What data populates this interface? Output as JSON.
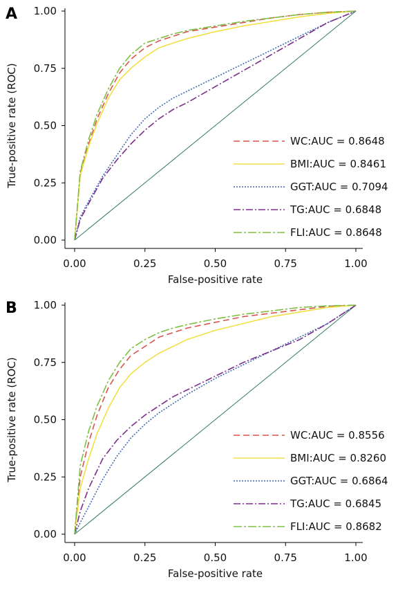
{
  "chart_data": [
    {
      "panel": "A",
      "type": "line",
      "xlabel": "False-positive rate",
      "ylabel": "True-positive rate (ROC)",
      "xlim": [
        0,
        1
      ],
      "ylim": [
        0,
        1
      ],
      "xticks": [
        "0.00",
        "0.25",
        "0.50",
        "0.75",
        "1.00"
      ],
      "yticks": [
        "0.00",
        "0.25",
        "0.50",
        "0.75",
        "1.00"
      ],
      "legend_position": "bottom-right",
      "reference_line": {
        "x": [
          0,
          1
        ],
        "y": [
          0,
          1
        ],
        "color": "#2e7d5b"
      },
      "series": [
        {
          "name": "WC:AUC = 0.8648",
          "color": "#d9534f",
          "dash": "9,5",
          "x": [
            0,
            0.02,
            0.05,
            0.08,
            0.12,
            0.16,
            0.2,
            0.25,
            0.3,
            0.35,
            0.4,
            0.5,
            0.6,
            0.7,
            0.8,
            0.9,
            1.0
          ],
          "y": [
            0,
            0.29,
            0.42,
            0.53,
            0.64,
            0.73,
            0.79,
            0.84,
            0.87,
            0.89,
            0.91,
            0.93,
            0.95,
            0.97,
            0.985,
            0.995,
            1.0
          ]
        },
        {
          "name": "BMI:AUC = 0.8461",
          "color": "#f2df45",
          "dash": "",
          "x": [
            0,
            0.02,
            0.05,
            0.08,
            0.12,
            0.16,
            0.2,
            0.25,
            0.3,
            0.35,
            0.4,
            0.5,
            0.6,
            0.7,
            0.8,
            0.9,
            1.0
          ],
          "y": [
            0,
            0.28,
            0.41,
            0.51,
            0.62,
            0.7,
            0.75,
            0.8,
            0.84,
            0.86,
            0.88,
            0.91,
            0.935,
            0.955,
            0.975,
            0.99,
            1.0
          ]
        },
        {
          "name": "GGT:AUC = 0.7094",
          "color": "#3f67b5",
          "dash": "2,2",
          "x": [
            0,
            0.02,
            0.05,
            0.1,
            0.15,
            0.2,
            0.25,
            0.3,
            0.35,
            0.4,
            0.5,
            0.6,
            0.7,
            0.8,
            0.9,
            1.0
          ],
          "y": [
            0,
            0.1,
            0.17,
            0.28,
            0.37,
            0.46,
            0.53,
            0.58,
            0.62,
            0.65,
            0.71,
            0.77,
            0.83,
            0.89,
            0.95,
            1.0
          ]
        },
        {
          "name": "TG:AUC = 0.6848",
          "color": "#7b2d8b",
          "dash": "10,3,2,3",
          "x": [
            0,
            0.02,
            0.05,
            0.1,
            0.15,
            0.2,
            0.25,
            0.3,
            0.35,
            0.4,
            0.5,
            0.6,
            0.7,
            0.8,
            0.9,
            1.0
          ],
          "y": [
            0,
            0.09,
            0.16,
            0.27,
            0.35,
            0.42,
            0.48,
            0.53,
            0.57,
            0.6,
            0.67,
            0.74,
            0.81,
            0.88,
            0.95,
            1.0
          ]
        },
        {
          "name": "FLI:AUC = 0.8648",
          "color": "#7ebf42",
          "dash": "12,3,3,3",
          "x": [
            0,
            0.02,
            0.05,
            0.08,
            0.12,
            0.16,
            0.2,
            0.25,
            0.3,
            0.35,
            0.4,
            0.5,
            0.6,
            0.7,
            0.8,
            0.9,
            1.0
          ],
          "y": [
            0,
            0.3,
            0.44,
            0.55,
            0.66,
            0.75,
            0.81,
            0.86,
            0.88,
            0.9,
            0.915,
            0.935,
            0.955,
            0.97,
            0.985,
            0.995,
            1.0
          ]
        }
      ]
    },
    {
      "panel": "B",
      "type": "line",
      "xlabel": "False-positive rate",
      "ylabel": "True-positive rate (ROC)",
      "xlim": [
        0,
        1
      ],
      "ylim": [
        0,
        1
      ],
      "xticks": [
        "0.00",
        "0.25",
        "0.50",
        "0.75",
        "1.00"
      ],
      "yticks": [
        "0.00",
        "0.25",
        "0.50",
        "0.75",
        "1.00"
      ],
      "legend_position": "bottom-right",
      "reference_line": {
        "x": [
          0,
          1
        ],
        "y": [
          0,
          1
        ],
        "color": "#2e7d5b"
      },
      "series": [
        {
          "name": "WC:AUC = 0.8556",
          "color": "#d9534f",
          "dash": "9,5",
          "x": [
            0,
            0.02,
            0.05,
            0.08,
            0.12,
            0.16,
            0.2,
            0.25,
            0.3,
            0.35,
            0.4,
            0.5,
            0.6,
            0.7,
            0.8,
            0.9,
            1.0
          ],
          "y": [
            0,
            0.25,
            0.4,
            0.52,
            0.64,
            0.72,
            0.78,
            0.82,
            0.86,
            0.88,
            0.9,
            0.925,
            0.95,
            0.965,
            0.98,
            0.995,
            1.0
          ]
        },
        {
          "name": "BMI:AUC = 0.8260",
          "color": "#f2df45",
          "dash": "",
          "x": [
            0,
            0.02,
            0.05,
            0.08,
            0.12,
            0.16,
            0.2,
            0.25,
            0.3,
            0.35,
            0.4,
            0.5,
            0.6,
            0.7,
            0.8,
            0.9,
            1.0
          ],
          "y": [
            0,
            0.2,
            0.33,
            0.44,
            0.55,
            0.64,
            0.7,
            0.75,
            0.79,
            0.82,
            0.85,
            0.89,
            0.92,
            0.95,
            0.97,
            0.99,
            1.0
          ]
        },
        {
          "name": "GGT:AUC = 0.6864",
          "color": "#3f67b5",
          "dash": "2,2",
          "x": [
            0,
            0.02,
            0.05,
            0.1,
            0.15,
            0.2,
            0.25,
            0.3,
            0.35,
            0.4,
            0.5,
            0.6,
            0.7,
            0.8,
            0.9,
            1.0
          ],
          "y": [
            0,
            0.05,
            0.12,
            0.24,
            0.34,
            0.42,
            0.48,
            0.53,
            0.57,
            0.61,
            0.68,
            0.74,
            0.8,
            0.86,
            0.92,
            1.0
          ]
        },
        {
          "name": "TG:AUC = 0.6845",
          "color": "#7b2d8b",
          "dash": "10,3,2,3",
          "x": [
            0,
            0.02,
            0.05,
            0.1,
            0.15,
            0.2,
            0.25,
            0.3,
            0.35,
            0.4,
            0.5,
            0.6,
            0.7,
            0.8,
            0.9,
            1.0
          ],
          "y": [
            0,
            0.1,
            0.2,
            0.33,
            0.41,
            0.47,
            0.52,
            0.56,
            0.6,
            0.63,
            0.69,
            0.75,
            0.8,
            0.85,
            0.92,
            1.0
          ]
        },
        {
          "name": "FLI:AUC = 0.8682",
          "color": "#7ebf42",
          "dash": "12,3,3,3",
          "x": [
            0,
            0.02,
            0.05,
            0.08,
            0.12,
            0.16,
            0.2,
            0.25,
            0.3,
            0.35,
            0.4,
            0.5,
            0.6,
            0.7,
            0.8,
            0.9,
            1.0
          ],
          "y": [
            0,
            0.3,
            0.45,
            0.56,
            0.67,
            0.75,
            0.81,
            0.85,
            0.88,
            0.9,
            0.915,
            0.94,
            0.96,
            0.975,
            0.99,
            0.997,
            1.0
          ]
        }
      ]
    }
  ]
}
